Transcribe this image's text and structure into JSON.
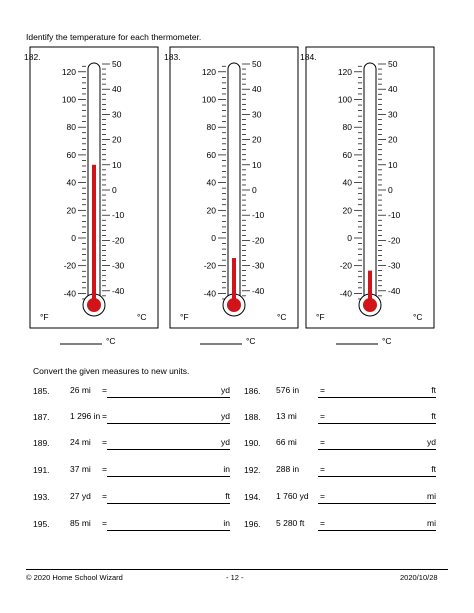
{
  "instructions_thermo": "Identify the temperature for each thermometer.",
  "thermometers": [
    {
      "number": "182.",
      "celsius_reading": 10
    },
    {
      "number": "183.",
      "celsius_reading": -27
    },
    {
      "number": "184.",
      "celsius_reading": -32
    }
  ],
  "fahrenheit_ticks": [
    "120",
    "100",
    "80",
    "60",
    "40",
    "20",
    "0",
    "-20",
    "-40"
  ],
  "celsius_ticks": [
    "50",
    "40",
    "30",
    "20",
    "10",
    "0",
    "-10",
    "-20",
    "-30",
    "-40"
  ],
  "unit_f": "°F",
  "unit_c": "°C",
  "answer_unit": "°C",
  "colors": {
    "mercury": "#d0141a",
    "stroke": "#000000"
  },
  "instructions_convert": "Convert the given measures to new units.",
  "conversions": [
    {
      "number": "185.",
      "given": "26 mi",
      "eq": "=",
      "unit": "yd"
    },
    {
      "number": "186.",
      "given": "576 in",
      "eq": "=",
      "unit": "ft"
    },
    {
      "number": "187.",
      "given": "1 296 in",
      "eq": "=",
      "unit": "yd"
    },
    {
      "number": "188.",
      "given": "13 mi",
      "eq": "=",
      "unit": "ft"
    },
    {
      "number": "189.",
      "given": "24 mi",
      "eq": "=",
      "unit": "yd"
    },
    {
      "number": "190.",
      "given": "66 mi",
      "eq": "=",
      "unit": "yd"
    },
    {
      "number": "191.",
      "given": "37 mi",
      "eq": "=",
      "unit": "in"
    },
    {
      "number": "192.",
      "given": "288 in",
      "eq": "=",
      "unit": "ft"
    },
    {
      "number": "193.",
      "given": "27 yd",
      "eq": "=",
      "unit": "ft"
    },
    {
      "number": "194.",
      "given": "1 760 yd",
      "eq": "=",
      "unit": "mi"
    },
    {
      "number": "195.",
      "given": "85 mi",
      "eq": "=",
      "unit": "in"
    },
    {
      "number": "196.",
      "given": "5 280 ft",
      "eq": "=",
      "unit": "mi"
    }
  ],
  "footer": {
    "left": "© 2020 Home School Wizard",
    "center": "- 12 -",
    "right": "2020/10/28"
  }
}
